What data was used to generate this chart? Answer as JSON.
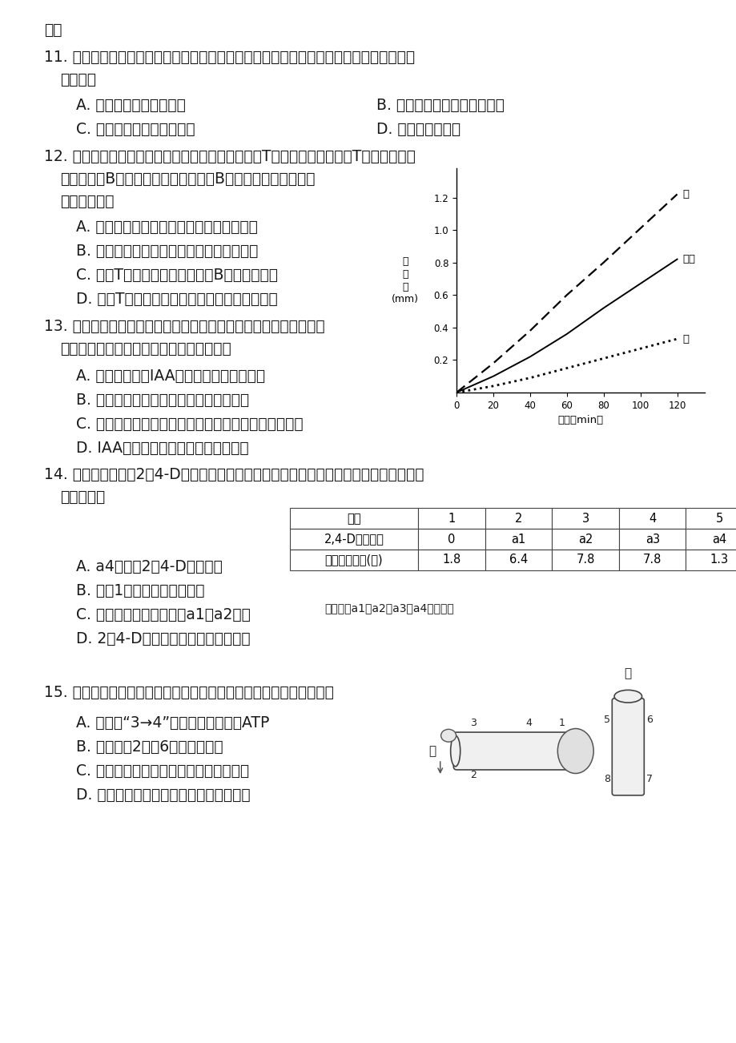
{
  "page_bg": "#ffffff",
  "text_color": "#333333",
  "title_top": "灭活",
  "q11_text": "11. 有人用通过手术获得部分下丘脑被损毁却能存活的大鼠，并进行了相关研究。下列结果",
  "q11_sub": "可能的是",
  "q11_A": "A. 刺激该大鼠下肢无反应",
  "q11_B": "B. 该大鼠甲状腺激素分泌增加",
  "q11_C": "C. 该大鼠体温无法维持平衡",
  "q11_D": "D. 该大鼠尿量减少",
  "q12_text": "12. 有一种胰岛素依赖型糖尿病是由于患者体内某种T细胞过度激活为效应T细胞后，选择",
  "q12_sub1": "性地与胰岛B细胞密切接触，导致胰岛B细胞死亡而发病。下列",
  "q12_sub2": "叙述正确的是",
  "q12_A": "A. 这种胰岛素依赖型糖尿病属于自身免疫病",
  "q12_B": "B. 患者血液中胰岛素水平高于正常生理水平",
  "q12_C": "C. 效应T细胞将抗原传递给胰岛B细胞致其死亡",
  "q12_D": "D. 促进T细胞增殖的免疫增强剂可用于治疗该病",
  "q13_text": "13. 右图为燕麦胚芽鞘经过单侧光照射后，甲、乙两侧的生长情况，",
  "q13_sub": "对照组未经单侧光处理。下列叙述正确的是",
  "q13_A": "A. 甲为背光侧，IAA含量低于乙侧和对照组",
  "q13_B": "B. 对照组的燕麦胚芽鞘既不生长也不弯曲",
  "q13_C": "C. 若光照前去除尖端，甲、乙两侧的生长状况基本一致",
  "q13_D": "D. IAA极性运输到尖端下部再横向运输",
  "q14_text": "14. 某兴趣小组探究2，4-D对插枝生根的作用，实验结果如下表所示。下列叙述与该实验",
  "q14_sub": "不相符的是",
  "q14_A": "A. a4浓度的2，4-D抑制生根",
  "q14_B": "B. 组切1在实验中起对照作用",
  "q14_C": "C. 促进生根的最适浓度在a1与a2之间",
  "q14_D": "D. 2，4-D既能促进生根也能抑制生根",
  "q15_text": "15. 下列关于植物茎的负向重力性和根的向重力性的叙述中，正确的是",
  "q15_A": "A. 在根部“3→4”的运输不需要消耗ATP",
  "q15_B": "B. 生长素对2处和6处的作用相同",
  "q15_C": "C. 两种现象说明根对生长素的敏感高于茎",
  "q15_D": "D. 两种现象均能体现生长素作用的两重性",
  "table_headers": [
    "组别",
    "1",
    "2",
    "3",
    "4",
    "5"
  ],
  "table_row1": [
    "2,4-D溶液浓度",
    "0",
    "a1",
    "a2",
    "a3",
    "a4"
  ],
  "table_row2": [
    "根的平均数目(条)",
    "1.8",
    "6.4",
    "7.8",
    "7.8",
    "1.3"
  ],
  "table_note": "【注】：a1、a2、a3、a4依次增大",
  "graph_yticks": [
    0.2,
    0.4,
    0.6,
    0.8,
    1.0,
    1.2
  ],
  "graph_xticks": [
    0,
    20,
    40,
    60,
    80,
    100,
    120
  ],
  "graph_t": [
    0,
    20,
    40,
    60,
    80,
    100,
    120
  ],
  "graph_jia": [
    0,
    0.18,
    0.38,
    0.6,
    0.8,
    1.01,
    1.22
  ],
  "graph_zhao": [
    0,
    0.1,
    0.22,
    0.36,
    0.52,
    0.67,
    0.82
  ],
  "graph_yi": [
    0,
    0.04,
    0.09,
    0.15,
    0.21,
    0.27,
    0.33
  ]
}
